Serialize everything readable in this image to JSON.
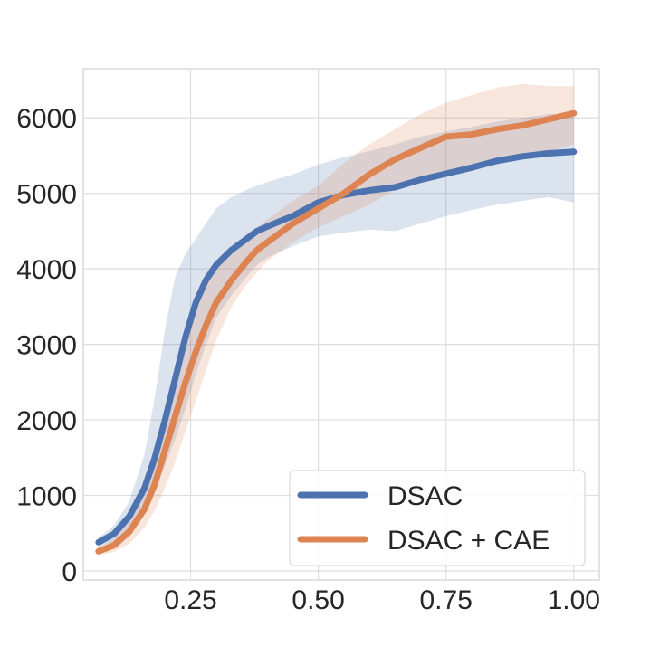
{
  "chart_data": {
    "type": "line",
    "title": "",
    "xlabel": "",
    "ylabel": "",
    "xlim": [
      0.04,
      1.05
    ],
    "ylim": [
      -120,
      6650
    ],
    "x_ticks": [
      0.25,
      0.5,
      0.75,
      1.0
    ],
    "x_tick_labels": [
      "0.25",
      "0.50",
      "0.75",
      "1.00"
    ],
    "y_ticks": [
      0,
      1000,
      2000,
      3000,
      4000,
      5000,
      6000
    ],
    "y_tick_labels": [
      "0",
      "1000",
      "2000",
      "3000",
      "4000",
      "5000",
      "6000"
    ],
    "grid": true,
    "legend_position": "lower-right",
    "series": [
      {
        "name": "DSAC",
        "color": "#4c72b0",
        "x": [
          0.07,
          0.1,
          0.13,
          0.16,
          0.18,
          0.2,
          0.22,
          0.24,
          0.26,
          0.28,
          0.3,
          0.33,
          0.36,
          0.38,
          0.4,
          0.45,
          0.5,
          0.55,
          0.6,
          0.65,
          0.7,
          0.75,
          0.8,
          0.85,
          0.9,
          0.95,
          1.0
        ],
        "mean": [
          380,
          490,
          720,
          1100,
          1500,
          2000,
          2550,
          3100,
          3550,
          3850,
          4050,
          4250,
          4400,
          4500,
          4560,
          4700,
          4880,
          4980,
          5040,
          5080,
          5180,
          5260,
          5340,
          5430,
          5490,
          5530,
          5550
        ],
        "lower": [
          320,
          380,
          520,
          800,
          1050,
          1400,
          1750,
          2150,
          2600,
          3000,
          3350,
          3650,
          3900,
          4050,
          4150,
          4300,
          4430,
          4480,
          4520,
          4500,
          4600,
          4700,
          4780,
          4850,
          4900,
          4950,
          4880
        ],
        "upper": [
          440,
          600,
          920,
          1550,
          2300,
          3200,
          3900,
          4200,
          4400,
          4600,
          4800,
          4950,
          5050,
          5100,
          5150,
          5250,
          5380,
          5480,
          5560,
          5650,
          5750,
          5820,
          5880,
          5950,
          6000,
          6050,
          6050
        ]
      },
      {
        "name": "DSAC + CAE",
        "color": "#dd8452",
        "x": [
          0.07,
          0.1,
          0.13,
          0.16,
          0.18,
          0.2,
          0.22,
          0.24,
          0.26,
          0.28,
          0.3,
          0.33,
          0.36,
          0.38,
          0.4,
          0.45,
          0.5,
          0.55,
          0.6,
          0.65,
          0.7,
          0.75,
          0.8,
          0.85,
          0.9,
          0.95,
          1.0
        ],
        "mean": [
          260,
          340,
          520,
          820,
          1150,
          1600,
          2050,
          2500,
          2900,
          3250,
          3550,
          3850,
          4100,
          4250,
          4350,
          4600,
          4800,
          5000,
          5250,
          5450,
          5600,
          5750,
          5780,
          5850,
          5900,
          5980,
          6060
        ],
        "lower": [
          210,
          250,
          360,
          580,
          800,
          1100,
          1450,
          1850,
          2250,
          2650,
          3050,
          3500,
          3800,
          3950,
          4100,
          4350,
          4550,
          4700,
          4850,
          5050,
          5200,
          5300,
          5350,
          5400,
          5450,
          5550,
          5650
        ],
        "upper": [
          310,
          430,
          680,
          1060,
          1500,
          2100,
          2650,
          3150,
          3550,
          3800,
          4000,
          4250,
          4400,
          4550,
          4650,
          4900,
          5100,
          5400,
          5650,
          5850,
          6050,
          6200,
          6300,
          6400,
          6450,
          6420,
          6420
        ]
      }
    ]
  }
}
